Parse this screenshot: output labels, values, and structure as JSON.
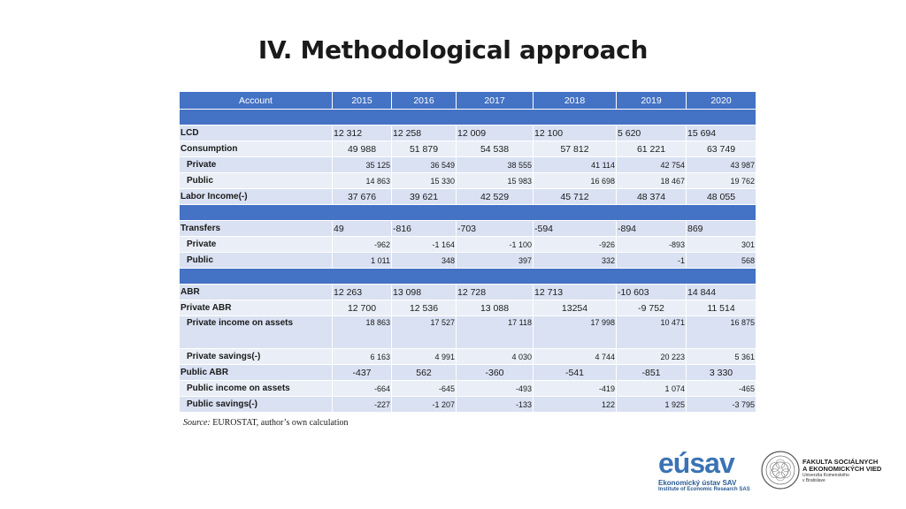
{
  "title": "IV. Methodological approach",
  "table": {
    "header": [
      "Account",
      "2015",
      "2016",
      "2017",
      "2018",
      "2019",
      "2020"
    ],
    "rows": {
      "lcd": {
        "label": "LCD",
        "values": [
          "12 312",
          "12 258",
          "12 009",
          "12 100",
          "5 620",
          "15 694"
        ]
      },
      "consumption": {
        "label": "Consumption",
        "values": [
          "49 988",
          "51 879",
          "54 538",
          "57 812",
          "61 221",
          "63 749"
        ]
      },
      "cons_private": {
        "label": "Private",
        "values": [
          "35 125",
          "36 549",
          "38 555",
          "41 114",
          "42 754",
          "43 987"
        ]
      },
      "cons_public": {
        "label": "Public",
        "values": [
          "14 863",
          "15 330",
          "15 983",
          "16 698",
          "18 467",
          "19 762"
        ]
      },
      "labor_income": {
        "label": "Labor Income(-)",
        "values": [
          "37 676",
          "39 621",
          "42 529",
          "45 712",
          "48 374",
          "48 055"
        ]
      },
      "transfers": {
        "label": "Transfers",
        "values": [
          "49",
          "-816",
          "-703",
          "-594",
          "-894",
          "869"
        ]
      },
      "tr_private": {
        "label": "Private",
        "values": [
          "-962",
          "-1 164",
          "-1 100",
          "-926",
          "-893",
          "301"
        ]
      },
      "tr_public": {
        "label": "Public",
        "values": [
          "1 011",
          "348",
          "397",
          "332",
          "-1",
          "568"
        ]
      },
      "abr": {
        "label": "ABR",
        "values": [
          "12 263",
          "13 098",
          "12 728",
          "12 713",
          "-10 603",
          "14 844"
        ]
      },
      "private_abr": {
        "label": "Private ABR",
        "values": [
          "12 700",
          "12 536",
          "13 088",
          "13254",
          "-9 752",
          "11 514"
        ]
      },
      "private_income_assets": {
        "label": "Private income on assets",
        "values": [
          "18 863",
          "17 527",
          "17 118",
          "17 998",
          "10 471",
          "16 875"
        ]
      },
      "private_savings": {
        "label": "Private savings(-)",
        "values": [
          "6 163",
          "4 991",
          "4 030",
          "4 744",
          "20 223",
          "5 361"
        ]
      },
      "public_abr": {
        "label": "Public ABR",
        "values": [
          "-437",
          "562",
          "-360",
          "-541",
          "-851",
          "3 330"
        ]
      },
      "public_income_assets": {
        "label": "Public income on assets",
        "values": [
          "-664",
          "-645",
          "-493",
          "-419",
          "1 074",
          "-465"
        ]
      },
      "public_savings": {
        "label": "Public savings(-)",
        "values": [
          "-227",
          "-1 207",
          "-133",
          "122",
          "1 925",
          "-3 795"
        ]
      }
    }
  },
  "source": {
    "label": "Source:",
    "text": "EUROSTAT, author’s own calculation"
  },
  "logos": {
    "esav_word": "eúsav",
    "esav_line1": "Ekonomický ústav SAV",
    "esav_line2": "Institute of Economic Research SAS",
    "faculty_line1": "FAKULTA SOCIÁLNYCH",
    "faculty_line2": "A EKONOMICKÝCH VIED",
    "faculty_line3": "Univerzita Komenského",
    "faculty_line4": "v Bratislave"
  },
  "colors": {
    "header_blue": "#4472c4",
    "row_dark": "#d9e1f2",
    "row_light": "#eaeff7"
  }
}
